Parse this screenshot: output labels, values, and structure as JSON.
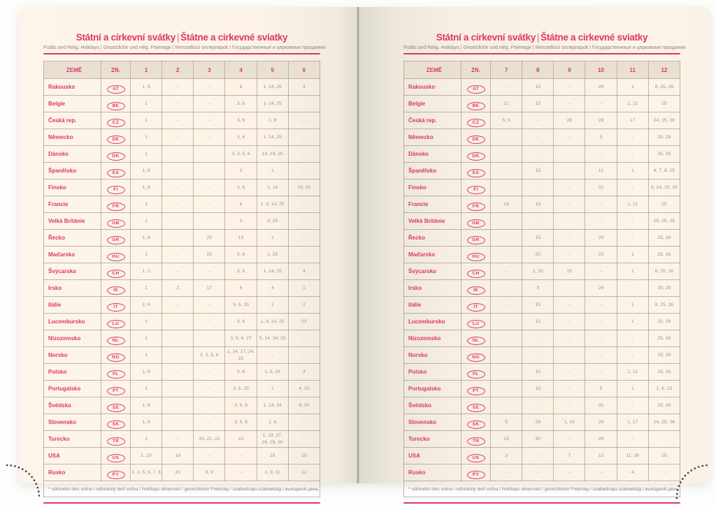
{
  "book": {
    "title_primary": "Státní a církevní svátky",
    "title_divider": "|",
    "title_secondary": "Štátne a cirkevné sviatky",
    "subtitle": "Public and Relig. Holidays | Gesetzliche und relig. Feiertage | Nemzetközi ünnepnapok | Государственные и церковные праздники",
    "footnote": "* náhradní den volna / náhradný deň voľna / holidays observed / gesetzlicher Feiertag / szabadnapi szabadság / выходной день"
  },
  "colors": {
    "accent": "#de3668",
    "page_cream": "#fcf3e6",
    "header_bg": "#e9e0d2",
    "grid": "#a99c86",
    "value_gray": "#98938b",
    "stitch_dots": "#3c3c3c"
  },
  "table": {
    "country_header": "ZEMĚ",
    "code_header": "ZN.",
    "left_months": [
      "1",
      "2",
      "3",
      "4",
      "5",
      "6"
    ],
    "right_months": [
      "7",
      "8",
      "9",
      "10",
      "11",
      "12"
    ],
    "rows": [
      {
        "country": "Rakousko",
        "code": "AT",
        "left": [
          "1, 6",
          "-",
          "-",
          "6",
          "1, 14, 25",
          "4"
        ],
        "right": [
          "-",
          "15",
          "-",
          "26",
          "1",
          "8, 25, 26"
        ]
      },
      {
        "country": "Belgie",
        "code": "BE",
        "left": [
          "1",
          "-",
          "-",
          "3, 6",
          "1, 14, 25",
          "-"
        ],
        "right": [
          "21",
          "15",
          "-",
          "-",
          "1, 11",
          "25"
        ]
      },
      {
        "country": "Česká rep.",
        "code": "CZ",
        "left": [
          "1",
          "-",
          "-",
          "3, 6",
          "1, 8",
          "-"
        ],
        "right": [
          "5, 6",
          "-",
          "28",
          "28",
          "17",
          "24, 25, 26"
        ]
      },
      {
        "country": "Německo",
        "code": "DE",
        "left": [
          "1",
          "-",
          "-",
          "3, 6",
          "1, 14, 25",
          "-"
        ],
        "right": [
          "-",
          "-",
          "-",
          "3",
          "-",
          "25, 26"
        ]
      },
      {
        "country": "Dánsko",
        "code": "DK",
        "left": [
          "1",
          "-",
          "-",
          "2, 3, 5, 6",
          "14, 24, 25",
          "-"
        ],
        "right": [
          "-",
          "-",
          "-",
          "-",
          "-",
          "25, 26"
        ]
      },
      {
        "country": "Španělsko",
        "code": "ES",
        "left": [
          "1, 6",
          "-",
          "-",
          "3",
          "1",
          "-"
        ],
        "right": [
          "-",
          "15",
          "-",
          "12",
          "1",
          "6, 7, 8, 25"
        ]
      },
      {
        "country": "Finsko",
        "code": "FI",
        "left": [
          "1, 6",
          "-",
          "-",
          "3, 6",
          "1, 14",
          "19, 20"
        ],
        "right": [
          "-",
          "-",
          "-",
          "31",
          "-",
          "6, 24, 25, 26"
        ]
      },
      {
        "country": "Francie",
        "code": "FR",
        "left": [
          "1",
          "-",
          "-",
          "6",
          "1, 8, 14, 25",
          "-"
        ],
        "right": [
          "14",
          "15",
          "-",
          "-",
          "1, 11",
          "25"
        ]
      },
      {
        "country": "Velká Británie",
        "code": "GB",
        "left": [
          "1",
          "-",
          "-",
          "3",
          "4, 25",
          "-"
        ],
        "right": [
          "-",
          "-",
          "-",
          "-",
          "-",
          "25, 26, 28"
        ]
      },
      {
        "country": "Řecko",
        "code": "GR",
        "left": [
          "1, 6",
          "-",
          "25",
          "13",
          "1",
          "-"
        ],
        "right": [
          "-",
          "15",
          "-",
          "28",
          "-",
          "25, 26"
        ]
      },
      {
        "country": "Maďarsko",
        "code": "HU",
        "left": [
          "1",
          "-",
          "15",
          "3, 6",
          "1, 25",
          "-"
        ],
        "right": [
          "-",
          "20",
          "-",
          "23",
          "1",
          "25, 26"
        ]
      },
      {
        "country": "Švýcarsko",
        "code": "CH",
        "left": [
          "1, 2",
          "-",
          "-",
          "3, 6",
          "1, 14, 25",
          "4"
        ],
        "right": [
          "-",
          "1, 15",
          "20",
          "-",
          "1",
          "8, 25, 26"
        ]
      },
      {
        "country": "Irsko",
        "code": "IE",
        "left": [
          "1",
          "2",
          "17",
          "6",
          "4",
          "1"
        ],
        "right": [
          "-",
          "3",
          "-",
          "26",
          "-",
          "25, 26"
        ]
      },
      {
        "country": "Itálie",
        "code": "IT",
        "left": [
          "1, 6",
          "-",
          "-",
          "5, 6, 25",
          "1",
          "2"
        ],
        "right": [
          "-",
          "15",
          "-",
          "-",
          "1",
          "8, 25, 26"
        ]
      },
      {
        "country": "Lucembursko",
        "code": "LU",
        "left": [
          "1",
          "-",
          "-",
          "3, 6",
          "1, 9, 14, 25",
          "23"
        ],
        "right": [
          "-",
          "15",
          "-",
          "-",
          "1",
          "25, 26"
        ]
      },
      {
        "country": "Nizozemsko",
        "code": "NL",
        "left": [
          "1",
          "-",
          "-",
          "3, 5, 6, 27",
          "5, 14, 24, 25",
          "-"
        ],
        "right": [
          "-",
          "-",
          "-",
          "-",
          "-",
          "25, 26"
        ]
      },
      {
        "country": "Norsko",
        "code": "NO",
        "left": [
          "1",
          "-",
          "2, 3, 5, 6",
          "1, 14, 17, 24, 25",
          "-",
          "-"
        ],
        "right": [
          "-",
          "-",
          "-",
          "-",
          "-",
          "25, 26"
        ]
      },
      {
        "country": "Polsko",
        "code": "PL",
        "left": [
          "1, 6",
          "-",
          "-",
          "5, 6",
          "1, 3, 24",
          "4"
        ],
        "right": [
          "-",
          "15",
          "-",
          "-",
          "1, 11",
          "25, 26"
        ]
      },
      {
        "country": "Portugalsko",
        "code": "PT",
        "left": [
          "1",
          "-",
          "-",
          "3, 5, 25",
          "1",
          "4, 10"
        ],
        "right": [
          "-",
          "15",
          "-",
          "5",
          "1",
          "1, 8, 25"
        ]
      },
      {
        "country": "Švédsko",
        "code": "SE",
        "left": [
          "1, 6",
          "-",
          "-",
          "3, 5, 6",
          "1, 14, 24",
          "6, 20"
        ],
        "right": [
          "-",
          "-",
          "-",
          "31",
          "-",
          "25, 26"
        ]
      },
      {
        "country": "Slovensko",
        "code": "SK",
        "left": [
          "1, 6",
          "-",
          "-",
          "3, 5, 6",
          "1, 8",
          "-"
        ],
        "right": [
          "5",
          "29",
          "1, 15",
          "28",
          "1, 17",
          "24, 25, 26"
        ]
      },
      {
        "country": "Turecko",
        "code": "TR",
        "left": [
          "1",
          "-",
          "20, 21, 22",
          "23",
          "1, 19, 27,\n28, 29, 30",
          "-"
        ],
        "right": [
          "15",
          "30",
          "-",
          "29",
          "-",
          "-"
        ]
      },
      {
        "country": "USA",
        "code": "US",
        "left": [
          "1, 19",
          "16",
          "-",
          "-",
          "25",
          "19"
        ],
        "right": [
          "3",
          "-",
          "7",
          "12",
          "11, 26",
          "25"
        ]
      },
      {
        "country": "Rusko",
        "code": "PY",
        "left": [
          "1, 2, 5, 6, 7, 8",
          "23",
          "8, 9",
          "-",
          "1, 9, 11",
          "12"
        ],
        "right": [
          "-",
          "-",
          "-",
          "-",
          "4",
          "-"
        ]
      }
    ]
  }
}
